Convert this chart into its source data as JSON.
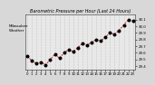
{
  "title": "Barometric Pressure per Hour (Last 24 Hours)",
  "left_label": "Milwaukee\nWeather",
  "background_color": "#d8d8d8",
  "plot_bg_color": "#e8e8e8",
  "grid_color": "#aaaaaa",
  "line_color": "#cc0000",
  "marker_color": "#000000",
  "marker_size": 3.5,
  "y_min": 29.35,
  "y_max": 30.18,
  "hours": [
    0,
    1,
    2,
    3,
    4,
    5,
    6,
    7,
    8,
    9,
    10,
    11,
    12,
    13,
    14,
    15,
    16,
    17,
    18,
    19,
    20,
    21,
    22,
    23
  ],
  "pressure": [
    29.55,
    29.48,
    29.44,
    29.46,
    29.42,
    29.5,
    29.58,
    29.52,
    29.6,
    29.65,
    29.62,
    29.68,
    29.74,
    29.72,
    29.76,
    29.8,
    29.78,
    29.84,
    29.9,
    29.88,
    29.94,
    30.02,
    30.1,
    30.08
  ],
  "ytick_labels": [
    "29.4",
    "29.5",
    "29.6",
    "29.7",
    "29.8",
    "29.9",
    "30.0",
    "30.1"
  ],
  "ytick_values": [
    29.4,
    29.5,
    29.6,
    29.7,
    29.8,
    29.9,
    30.0,
    30.1
  ],
  "title_fontsize": 3.5,
  "tick_fontsize": 2.8,
  "label_fontsize": 3.0
}
